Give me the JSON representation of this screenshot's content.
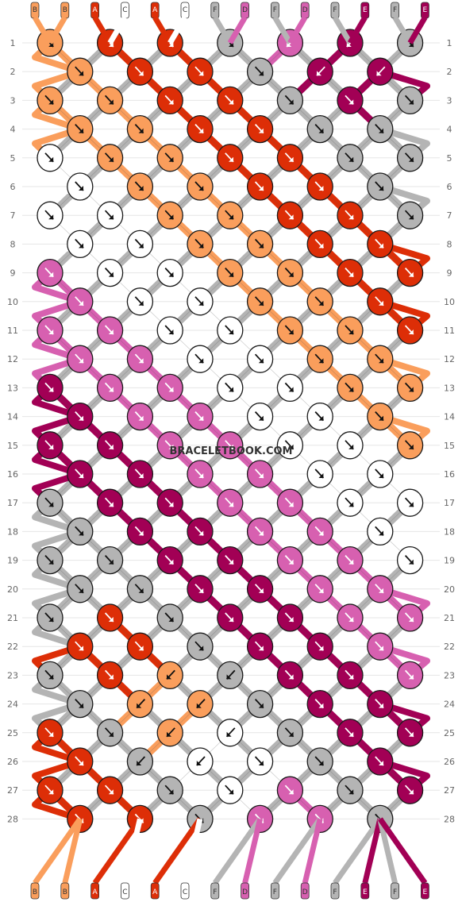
{
  "watermark": "BRACELETBOOK.COM",
  "thread_labels_top": [
    "B",
    "B",
    "A",
    "C",
    "A",
    "C",
    "F",
    "D",
    "F",
    "D",
    "F",
    "E",
    "F",
    "E"
  ],
  "thread_labels_bottom": [
    "B",
    "B",
    "A",
    "C",
    "A",
    "C",
    "F",
    "D",
    "F",
    "D",
    "F",
    "E",
    "F",
    "E"
  ],
  "row_numbers": [
    "1",
    "2",
    "3",
    "4",
    "5",
    "6",
    "7",
    "8",
    "9",
    "10",
    "11",
    "12",
    "13",
    "14",
    "15",
    "16",
    "17",
    "18",
    "19",
    "20",
    "21",
    "22",
    "23",
    "24",
    "25",
    "26",
    "27",
    "28"
  ],
  "colors": {
    "A": "#dd2e07",
    "B": "#fa9e5c",
    "C": "#ffffff",
    "D": "#d760b0",
    "E": "#a20055",
    "F": "#b4b4b4"
  },
  "knot_rows": [
    [
      "B",
      "A",
      "A",
      "F",
      "D",
      "E",
      "F"
    ],
    [
      "B",
      "A",
      "A",
      "F",
      "E",
      "E"
    ],
    [
      "B",
      "B",
      "A",
      "A",
      "F",
      "E",
      "F"
    ],
    [
      "B",
      "B",
      "A",
      "A",
      "F",
      "F"
    ],
    [
      "C",
      "B",
      "B",
      "A",
      "A",
      "F",
      "F"
    ],
    [
      "C",
      "B",
      "B",
      "A",
      "A",
      "F"
    ],
    [
      "C",
      "C",
      "B",
      "B",
      "A",
      "A",
      "F"
    ],
    [
      "C",
      "C",
      "B",
      "B",
      "A",
      "A"
    ],
    [
      "D",
      "C",
      "C",
      "B",
      "B",
      "A",
      "A"
    ],
    [
      "D",
      "C",
      "C",
      "B",
      "B",
      "A"
    ],
    [
      "D",
      "D",
      "C",
      "C",
      "B",
      "B",
      "A"
    ],
    [
      "D",
      "D",
      "C",
      "C",
      "B",
      "B"
    ],
    [
      "E",
      "D",
      "D",
      "C",
      "C",
      "B",
      "B"
    ],
    [
      "E",
      "D",
      "D",
      "C",
      "C",
      "B"
    ],
    [
      "E",
      "E",
      "D",
      "D",
      "C",
      "C",
      "B"
    ],
    [
      "E",
      "E",
      "D",
      "D",
      "C",
      "C"
    ],
    [
      "F",
      "E",
      "E",
      "D",
      "D",
      "C",
      "C"
    ],
    [
      "F",
      "E",
      "E",
      "D",
      "D",
      "C"
    ],
    [
      "F",
      "F",
      "E",
      "E",
      "D",
      "D",
      "C"
    ],
    [
      "F",
      "F",
      "E",
      "E",
      "D",
      "D"
    ],
    [
      "F",
      "A",
      "F",
      "E",
      "E",
      "D",
      "D"
    ],
    [
      "A",
      "A",
      "F",
      "E",
      "E",
      "D"
    ],
    [
      "F",
      "A",
      "B",
      "F",
      "E",
      "E",
      "D"
    ],
    [
      "F",
      "B",
      "B",
      "F",
      "E",
      "E"
    ],
    [
      "A",
      "F",
      "B",
      "C",
      "F",
      "E",
      "E"
    ],
    [
      "A",
      "F",
      "C",
      "C",
      "F",
      "E"
    ],
    [
      "A",
      "A",
      "F",
      "C",
      "D",
      "F",
      "E"
    ],
    [
      "A",
      "A",
      "F",
      "D",
      "D",
      "F"
    ]
  ],
  "knot_directions": [
    [
      "R",
      "R",
      "R",
      "R",
      "L",
      "L",
      "R"
    ],
    [
      "R",
      "R",
      "R",
      "R",
      "L",
      "L"
    ],
    [
      "R",
      "R",
      "R",
      "R",
      "R",
      "R",
      "R"
    ],
    [
      "R",
      "R",
      "R",
      "R",
      "R",
      "R"
    ],
    [
      "R",
      "R",
      "R",
      "R",
      "R",
      "R",
      "R"
    ],
    [
      "R",
      "R",
      "R",
      "R",
      "R",
      "R"
    ],
    [
      "R",
      "R",
      "R",
      "R",
      "R",
      "R",
      "R"
    ],
    [
      "R",
      "R",
      "R",
      "R",
      "R",
      "R"
    ],
    [
      "R",
      "R",
      "R",
      "R",
      "R",
      "R",
      "R"
    ],
    [
      "R",
      "R",
      "R",
      "R",
      "R",
      "R"
    ],
    [
      "R",
      "R",
      "R",
      "R",
      "R",
      "R",
      "R"
    ],
    [
      "R",
      "R",
      "R",
      "R",
      "R",
      "R"
    ],
    [
      "R",
      "R",
      "R",
      "R",
      "R",
      "R",
      "R"
    ],
    [
      "R",
      "R",
      "R",
      "R",
      "R",
      "R"
    ],
    [
      "R",
      "R",
      "R",
      "R",
      "R",
      "R",
      "R"
    ],
    [
      "R",
      "R",
      "R",
      "R",
      "R",
      "R"
    ],
    [
      "R",
      "R",
      "R",
      "R",
      "R",
      "R",
      "R"
    ],
    [
      "R",
      "R",
      "R",
      "R",
      "R",
      "R"
    ],
    [
      "R",
      "R",
      "R",
      "R",
      "R",
      "R",
      "R"
    ],
    [
      "R",
      "R",
      "R",
      "R",
      "R",
      "R"
    ],
    [
      "R",
      "R",
      "R",
      "R",
      "R",
      "R",
      "R"
    ],
    [
      "R",
      "R",
      "R",
      "R",
      "R",
      "R"
    ],
    [
      "R",
      "R",
      "L",
      "L",
      "R",
      "R",
      "R"
    ],
    [
      "R",
      "L",
      "L",
      "R",
      "R",
      "R"
    ],
    [
      "R",
      "R",
      "L",
      "L",
      "R",
      "R",
      "R"
    ],
    [
      "R",
      "L",
      "L",
      "R",
      "R",
      "R"
    ],
    [
      "R",
      "R",
      "R",
      "R",
      "R",
      "R",
      "R"
    ],
    [
      "R",
      "R",
      "R",
      "R",
      "R",
      "R"
    ]
  ]
}
